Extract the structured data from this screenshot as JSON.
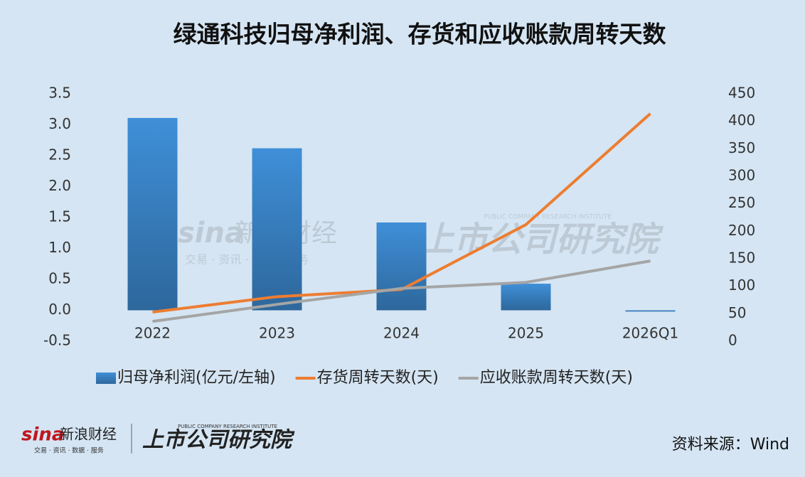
{
  "chart_data": {
    "type": "combo",
    "title": "绿通科技归母净利润、存货和应收账款周转天数",
    "categories": [
      "2022",
      "2023",
      "2024",
      "2025",
      "2026Q1"
    ],
    "series": [
      {
        "name": "归母净利润(亿元/左轴)",
        "type": "bar",
        "color": "#3f8fd8",
        "values": [
          3.11,
          2.62,
          1.42,
          0.43,
          -0.02
        ]
      },
      {
        "name": "存货周转天数(天)",
        "type": "line",
        "axis": "y2",
        "color": "#ed7d31",
        "values": [
          53,
          81,
          94,
          212,
          414
        ]
      },
      {
        "name": "应收账款周转天数(天)",
        "type": "line",
        "axis": "y2",
        "color": "#a5a5a5",
        "values": [
          36,
          67,
          96,
          107,
          146
        ]
      }
    ],
    "ylim": [
      -0.5,
      3.5
    ],
    "yticks": [
      -0.5,
      {
        "value": 0,
        "label": "0.0"
      },
      0.5,
      {
        "value": 1,
        "label": "1.0"
      },
      1.5,
      {
        "value": 2,
        "label": "2.0"
      },
      2.5,
      {
        "value": 3,
        "label": "3.0"
      },
      3.5
    ],
    "y2lim": [
      0,
      450
    ],
    "y2ticks": [
      0,
      50,
      100,
      150,
      200,
      250,
      300,
      350,
      400,
      450
    ],
    "legend": "bottom",
    "source": "资料来源：Wind"
  },
  "branding": {
    "sina": "sina",
    "sina_name": "新浪财经",
    "sina_slogan": "交易 · 资讯 · 数据 · 服务",
    "institute": "上市公司研究院",
    "institute_en": "PUBLIC COMPANY RESEARCH INSTITUTE"
  }
}
